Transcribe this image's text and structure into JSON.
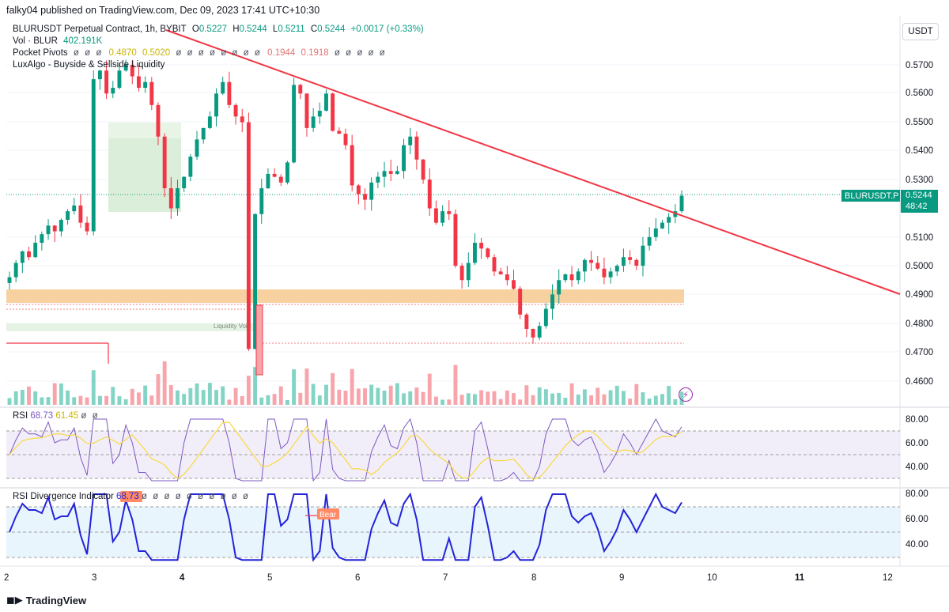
{
  "header": {
    "published": "falky04 published on TradingView.com, Dec 09, 2023 17:41 UTC+10:30"
  },
  "legend": {
    "symbol": "BLURUSDT Perpetual Contract, 1h, BYBIT",
    "o_label": "O",
    "o_value": "0.5227",
    "h_label": "H",
    "h_value": "0.5244",
    "l_label": "L",
    "l_value": "0.5211",
    "c_label": "C",
    "c_value": "0.5244",
    "change": "+0.0017 (+0.33%)",
    "vol_label": "Vol · BLUR",
    "vol_value": "402.191K",
    "pivots_label": "Pocket Pivots",
    "pivots_eyes": "ø ø ø",
    "pivots_v1": "0.4870",
    "pivots_v2": "0.5020",
    "pivots_eyes2": "ø ø ø ø ø ø ø ø",
    "pivots_v3": "0.1944",
    "pivots_v4": "0.1918",
    "pivots_eyes3": "ø ø ø ø ø",
    "luxalgo": "LuxAlgo - Buyside & Sellside Liquidity"
  },
  "toolbar": {
    "currency": "USDT"
  },
  "price_axis": {
    "ticks": [
      "0.5700",
      "0.5600",
      "0.5500",
      "0.5400",
      "0.5300",
      "0.5100",
      "0.5000",
      "0.4900",
      "0.4800",
      "0.4700",
      "0.4600"
    ]
  },
  "price_tag": {
    "symbol": "BLURUSDT.P",
    "price": "0.5244",
    "countdown": "48:42"
  },
  "chart_labels": {
    "liquidity_void": "Liquidity Void",
    "bear": "Bear"
  },
  "rsi": {
    "label": "RSI",
    "value1": "68.73",
    "value2": "61.45",
    "eyes": "ø ø",
    "ticks": [
      "80.00",
      "60.00",
      "40.00"
    ]
  },
  "rsi_div": {
    "label": "RSI Divergence Indicator",
    "value": "68.73",
    "eyes": "ø ø ø ø ø ø ø ø ø ø",
    "ticks": [
      "80.00",
      "60.00",
      "40.00"
    ]
  },
  "time_axis": {
    "ticks": [
      "2",
      "3",
      "4",
      "5",
      "6",
      "7",
      "8",
      "9",
      "10",
      "11",
      "12"
    ]
  },
  "footer": {
    "brand": "TradingView"
  },
  "colors": {
    "up": "#089981",
    "down": "#f23645",
    "trendline": "#f23645",
    "zone": "#f6c98f",
    "rsi_line": "#7e57c2",
    "rsi_ma": "#f7d940",
    "div_line": "#2424d8"
  },
  "chart_data": {
    "type": "candlestick",
    "interval": "1h",
    "ylim": [
      0.456,
      0.576
    ],
    "close_path": [
      0.496,
      0.501,
      0.505,
      0.503,
      0.508,
      0.511,
      0.514,
      0.512,
      0.516,
      0.519,
      0.521,
      0.515,
      0.512,
      0.565,
      0.568,
      0.56,
      0.562,
      0.568,
      0.57,
      0.566,
      0.562,
      0.564,
      0.556,
      0.545,
      0.527,
      0.52,
      0.527,
      0.531,
      0.538,
      0.544,
      0.548,
      0.552,
      0.56,
      0.564,
      0.556,
      0.552,
      0.55,
      0.471,
      0.518,
      0.527,
      0.532,
      0.531,
      0.529,
      0.536,
      0.563,
      0.56,
      0.548,
      0.552,
      0.554,
      0.56,
      0.547,
      0.546,
      0.542,
      0.528,
      0.525,
      0.523,
      0.529,
      0.531,
      0.533,
      0.532,
      0.533,
      0.542,
      0.545,
      0.537,
      0.53,
      0.52,
      0.515,
      0.519,
      0.518,
      0.5,
      0.495,
      0.501,
      0.508,
      0.506,
      0.503,
      0.498,
      0.497,
      0.495,
      0.492,
      0.483,
      0.478,
      0.475,
      0.479,
      0.485,
      0.49,
      0.495,
      0.497,
      0.495,
      0.498,
      0.502,
      0.501,
      0.499,
      0.496,
      0.498,
      0.5,
      0.503,
      0.502,
      0.5,
      0.507,
      0.51,
      0.513,
      0.515,
      0.517,
      0.519,
      0.5244
    ]
  }
}
